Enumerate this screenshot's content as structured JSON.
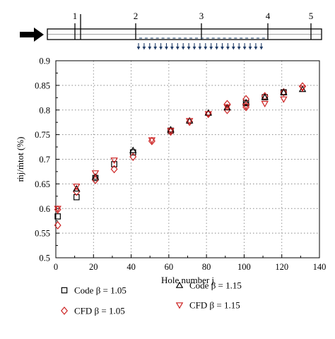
{
  "schematic": {
    "section_labels": [
      "1",
      "2",
      "3",
      "4",
      "5"
    ],
    "inflow_arrow_icon": "right-arrow-icon",
    "outflow_arrow_icon": "down-arrow-icon"
  },
  "chart_data": {
    "type": "scatter",
    "xlabel": "Hole number j",
    "ylabel": "ṁj/ṁtot (%)",
    "xlim": [
      0,
      140
    ],
    "ylim": [
      0.5,
      0.9
    ],
    "x_ticks": [
      0,
      20,
      40,
      60,
      80,
      100,
      120,
      140
    ],
    "y_ticks": [
      0.5,
      0.55,
      0.6,
      0.65,
      0.7,
      0.75,
      0.8,
      0.85,
      0.9
    ],
    "grid": true,
    "legend_position": "bottom",
    "series": [
      {
        "name": "Code β = 1.05",
        "marker": "square",
        "color": "#000000",
        "x": [
          1,
          11,
          21,
          31,
          41,
          61,
          101,
          111,
          121
        ],
        "y": [
          0.584,
          0.623,
          0.662,
          0.69,
          0.714,
          0.758,
          0.814,
          0.826,
          0.836
        ]
      },
      {
        "name": "CFD β = 1.05",
        "marker": "diamond",
        "color": "#cc2222",
        "x": [
          1,
          1,
          11,
          21,
          31,
          41,
          51,
          61,
          71,
          81,
          91,
          91,
          101,
          101,
          111,
          121,
          131
        ],
        "y": [
          0.598,
          0.566,
          0.634,
          0.658,
          0.68,
          0.705,
          0.737,
          0.756,
          0.776,
          0.792,
          0.812,
          0.8,
          0.822,
          0.806,
          0.828,
          0.836,
          0.848
        ]
      },
      {
        "name": "Code β = 1.15",
        "marker": "triangle-up",
        "color": "#000000",
        "x": [
          11,
          21,
          41,
          61,
          71,
          81,
          91,
          101,
          111,
          121,
          131
        ],
        "y": [
          0.64,
          0.664,
          0.718,
          0.76,
          0.778,
          0.794,
          0.805,
          0.815,
          0.826,
          0.836,
          0.842
        ]
      },
      {
        "name": "CFD β = 1.15",
        "marker": "triangle-down",
        "color": "#cc2222",
        "x": [
          1,
          11,
          21,
          31,
          51,
          61,
          71,
          81,
          91,
          101,
          111,
          121,
          131
        ],
        "y": [
          0.6,
          0.645,
          0.672,
          0.698,
          0.739,
          0.758,
          0.778,
          0.792,
          0.806,
          0.808,
          0.813,
          0.822,
          0.844
        ]
      }
    ]
  }
}
